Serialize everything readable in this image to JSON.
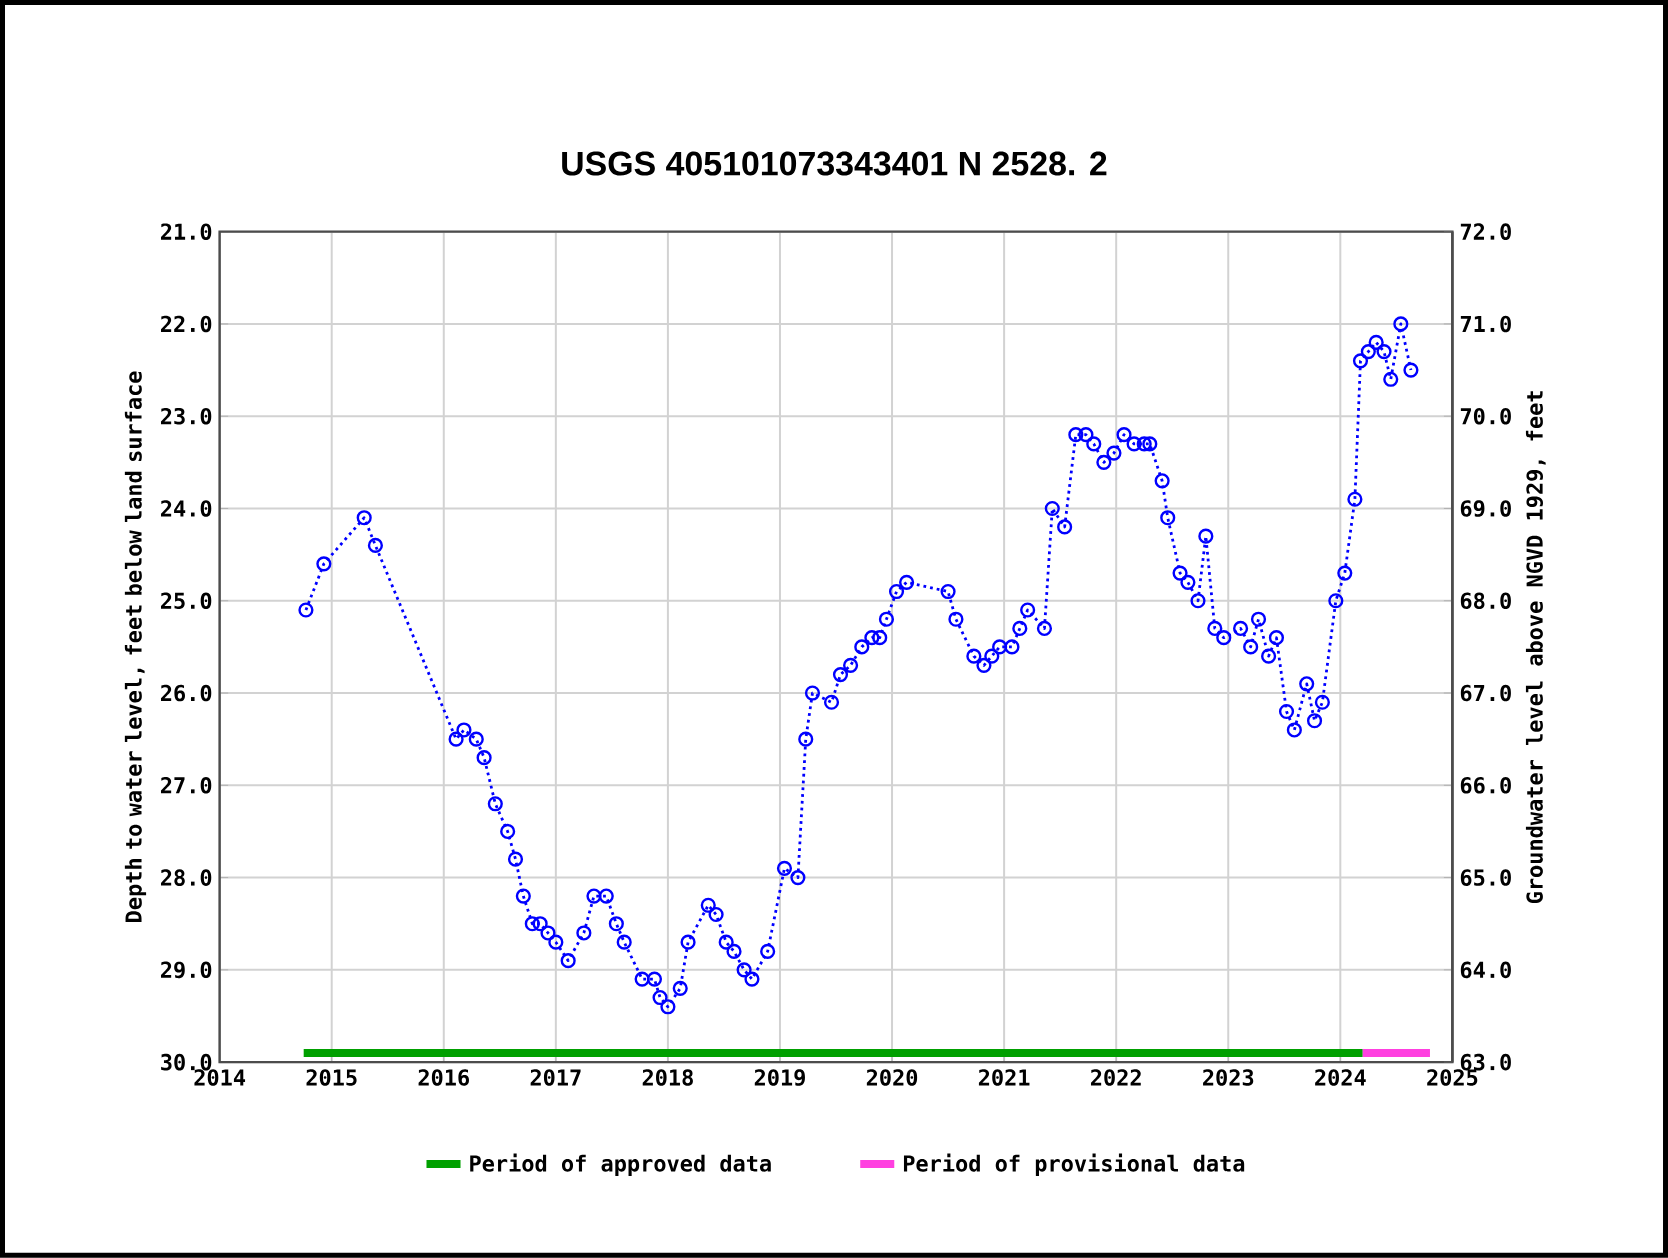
{
  "chart_data": {
    "type": "line",
    "title": "USGS 405101073343401 N  2528. 2",
    "ylabel": "Depth to water level, feet below land surface",
    "y2label": "Groundwater level above NGVD 1929, feet",
    "xlim": [
      2014,
      2025
    ],
    "xticks": [
      2014,
      2015,
      2016,
      2017,
      2018,
      2019,
      2020,
      2021,
      2022,
      2023,
      2024,
      2025
    ],
    "ylim": [
      30,
      21
    ],
    "yticks": [
      {
        "value": 21,
        "label": "21.0"
      },
      {
        "value": 22,
        "label": "22.0"
      },
      {
        "value": 23,
        "label": "23.0"
      },
      {
        "value": 24,
        "label": "24.0"
      },
      {
        "value": 25,
        "label": "25.0"
      },
      {
        "value": 26,
        "label": "26.0"
      },
      {
        "value": 27,
        "label": "27.0"
      },
      {
        "value": 28,
        "label": "28.0"
      },
      {
        "value": 29,
        "label": "29.0"
      },
      {
        "value": 30,
        "label": "30.0"
      }
    ],
    "y2lim": [
      63,
      72
    ],
    "y2ticks": [
      {
        "value": 63,
        "label": "63.0"
      },
      {
        "value": 64,
        "label": "64.0"
      },
      {
        "value": 65,
        "label": "65.0"
      },
      {
        "value": 66,
        "label": "66.0"
      },
      {
        "value": 67,
        "label": "67.0"
      },
      {
        "value": 68,
        "label": "68.0"
      },
      {
        "value": 69,
        "label": "69.0"
      },
      {
        "value": 70,
        "label": "70.0"
      },
      {
        "value": 71,
        "label": "71.0"
      },
      {
        "value": 72,
        "label": "72.0"
      }
    ],
    "grid": true,
    "legend": "bottom",
    "series": [
      {
        "color": "#0000ff",
        "marker": "circle",
        "line_style": "dotted",
        "x": [
          2014.77,
          2014.93,
          2015.29,
          2015.39,
          2016.11,
          2016.18,
          2016.29,
          2016.36,
          2016.46,
          2016.57,
          2016.64,
          2016.71,
          2016.79,
          2016.86,
          2016.93,
          2017.0,
          2017.11,
          2017.25,
          2017.34,
          2017.45,
          2017.54,
          2017.61,
          2017.77,
          2017.88,
          2017.93,
          2018.0,
          2018.11,
          2018.18,
          2018.36,
          2018.43,
          2018.52,
          2018.59,
          2018.68,
          2018.75,
          2018.89,
          2019.04,
          2019.16,
          2019.23,
          2019.29,
          2019.46,
          2019.54,
          2019.63,
          2019.73,
          2019.82,
          2019.89,
          2019.95,
          2020.04,
          2020.13,
          2020.5,
          2020.57,
          2020.73,
          2020.82,
          2020.89,
          2020.96,
          2021.07,
          2021.14,
          2021.21,
          2021.36,
          2021.43,
          2021.54,
          2021.64,
          2021.73,
          2021.8,
          2021.89,
          2021.98,
          2022.07,
          2022.16,
          2022.25,
          2022.3,
          2022.41,
          2022.46,
          2022.57,
          2022.64,
          2022.73,
          2022.8,
          2022.88,
          2022.96,
          2023.11,
          2023.2,
          2023.27,
          2023.36,
          2023.43,
          2023.52,
          2023.59,
          2023.7,
          2023.77,
          2023.84,
          2023.96,
          2024.04,
          2024.13,
          2024.18,
          2024.25,
          2024.32,
          2024.39,
          2024.45,
          2024.54,
          2024.63
        ],
        "values": [
          25.1,
          24.6,
          24.1,
          24.4,
          26.5,
          26.4,
          26.5,
          26.7,
          27.2,
          27.5,
          27.8,
          28.2,
          28.5,
          28.5,
          28.6,
          28.7,
          28.9,
          28.6,
          28.2,
          28.2,
          28.5,
          28.7,
          29.1,
          29.1,
          29.3,
          29.4,
          29.2,
          28.7,
          28.3,
          28.4,
          28.7,
          28.8,
          29.0,
          29.1,
          28.8,
          27.9,
          28.0,
          26.5,
          26.0,
          26.1,
          25.8,
          25.7,
          25.5,
          25.4,
          25.4,
          25.2,
          24.9,
          24.8,
          24.9,
          25.2,
          25.6,
          25.7,
          25.6,
          25.5,
          25.5,
          25.3,
          25.1,
          25.3,
          24.0,
          24.2,
          23.2,
          23.2,
          23.3,
          23.5,
          23.4,
          23.2,
          23.3,
          23.3,
          23.3,
          23.7,
          24.1,
          24.7,
          24.8,
          25.0,
          24.3,
          25.3,
          25.4,
          25.3,
          25.5,
          25.2,
          25.6,
          25.4,
          26.2,
          26.4,
          25.9,
          26.3,
          26.1,
          25.0,
          24.7,
          23.9,
          22.4,
          22.3,
          22.2,
          22.3,
          22.6,
          22.0,
          22.5
        ]
      },
      {
        "name": "Period of approved data",
        "color": "#00a000",
        "marker": "none",
        "line_style": "solid",
        "x": [
          2014.75,
          2024.2
        ],
        "values": [
          29.9,
          29.9
        ]
      },
      {
        "name": "Period of provisional data",
        "color": "#ff40e0",
        "marker": "none",
        "line_style": "solid",
        "x": [
          2024.2,
          2024.8
        ],
        "values": [
          29.9,
          29.9
        ]
      }
    ]
  }
}
